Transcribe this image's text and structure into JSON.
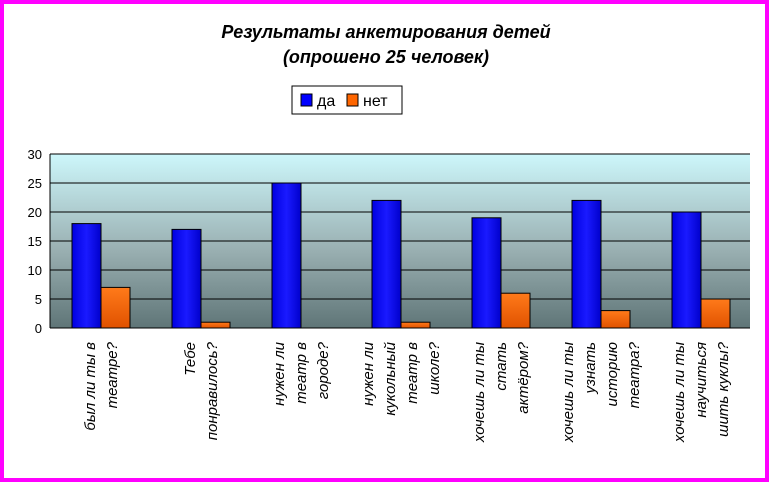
{
  "chart_data": {
    "type": "bar",
    "title": "Результаты анкетирования детей",
    "subtitle": "(опрошено 25 человек)",
    "categories": [
      [
        "был ли ты в",
        "театре?"
      ],
      [
        "Тебе",
        "понравилось?"
      ],
      [
        "нужен ли",
        "театр в",
        "городе?"
      ],
      [
        "нужен ли",
        "кукольный",
        "театр в",
        "школе?"
      ],
      [
        "хочешь ли ты",
        "стать",
        "актёром?"
      ],
      [
        "хочешь ли ты",
        "узнать",
        "историю",
        "театра?"
      ],
      [
        "хочешь ли ты",
        "научиться",
        "шить куклы?"
      ]
    ],
    "series": [
      {
        "name": "да",
        "color": "#0000ff",
        "values": [
          18,
          17,
          25,
          22,
          19,
          22,
          20
        ]
      },
      {
        "name": "нет",
        "color": "#ff6600",
        "values": [
          7,
          1,
          0,
          1,
          6,
          3,
          5
        ]
      }
    ],
    "ylim": [
      0,
      30
    ],
    "yticks": [
      "0",
      "5",
      "10",
      "15",
      "20",
      "25",
      "30"
    ],
    "legend_position": "top",
    "grid": true
  }
}
